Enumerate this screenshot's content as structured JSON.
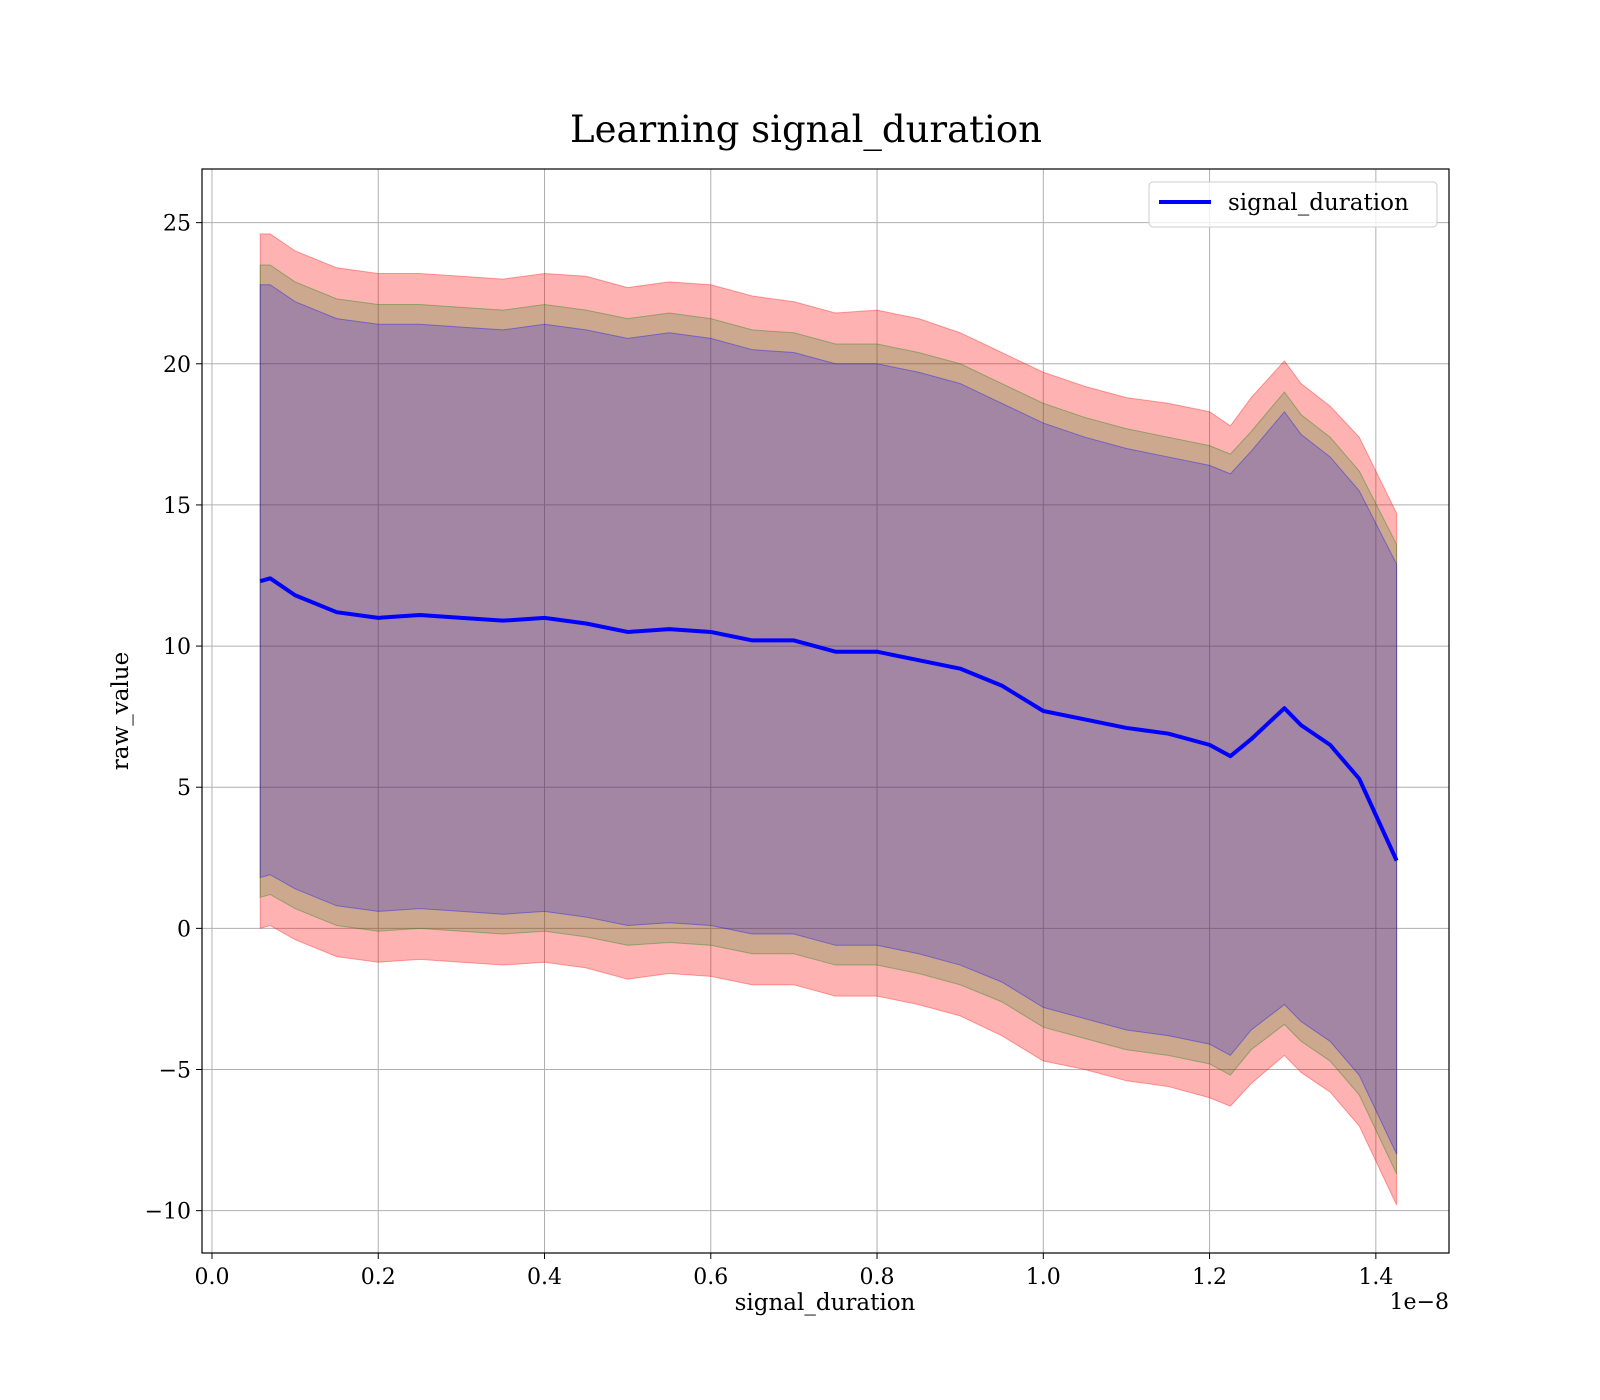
{
  "chart_data": {
    "type": "line",
    "title": "Learning signal_duration",
    "xlabel": "signal_duration",
    "ylabel": "raw_value",
    "x_offset_label": "1e−8",
    "x_scale_exponent": -8,
    "xlim": [
      -1.2e-10,
      1.488e-08
    ],
    "ylim": [
      -11.5,
      26.9
    ],
    "grid": true,
    "legend_position": "upper right",
    "x_ticks": [
      0.0,
      2e-09,
      4e-09,
      6e-09,
      8e-09,
      1e-08,
      1.2e-08,
      1.4e-08
    ],
    "x_tick_labels": [
      "0.0",
      "0.2",
      "0.4",
      "0.6",
      "0.8",
      "1.0",
      "1.2",
      "1.4"
    ],
    "y_ticks": [
      -10,
      -5,
      0,
      5,
      10,
      15,
      20,
      25
    ],
    "y_tick_labels": [
      "−10",
      "−5",
      "0",
      "5",
      "10",
      "15",
      "20",
      "25"
    ],
    "x": [
      5.8e-10,
      7e-10,
      1e-09,
      1.5e-09,
      2e-09,
      2.5e-09,
      3e-09,
      3.5e-09,
      4e-09,
      4.5e-09,
      5e-09,
      5.5e-09,
      6e-09,
      6.5e-09,
      7e-09,
      7.5e-09,
      8e-09,
      8.5e-09,
      9e-09,
      9.5e-09,
      1e-08,
      1.05e-08,
      1.1e-08,
      1.15e-08,
      1.2e-08,
      1.225e-08,
      1.25e-08,
      1.29e-08,
      1.31e-08,
      1.345e-08,
      1.38e-08,
      1.425e-08
    ],
    "series": [
      {
        "name": "signal_duration",
        "color": "#0000ff",
        "values": [
          12.3,
          12.4,
          11.8,
          11.2,
          11.0,
          11.1,
          11.0,
          10.9,
          11.0,
          10.8,
          10.5,
          10.6,
          10.5,
          10.2,
          10.2,
          9.8,
          9.8,
          9.5,
          9.2,
          8.6,
          7.7,
          7.4,
          7.1,
          6.9,
          6.5,
          6.1,
          6.7,
          7.8,
          7.2,
          6.5,
          5.3,
          2.4
        ]
      }
    ],
    "bands": [
      {
        "color": "#ff0000",
        "opacity": 0.3,
        "upper": [
          24.6,
          24.6,
          24.0,
          23.4,
          23.2,
          23.2,
          23.1,
          23.0,
          23.2,
          23.1,
          22.7,
          22.9,
          22.8,
          22.4,
          22.2,
          21.8,
          21.9,
          21.6,
          21.1,
          20.4,
          19.7,
          19.2,
          18.8,
          18.6,
          18.3,
          17.8,
          18.8,
          20.1,
          19.3,
          18.5,
          17.4,
          14.7
        ],
        "lower": [
          0.0,
          0.1,
          -0.4,
          -1.0,
          -1.2,
          -1.1,
          -1.2,
          -1.3,
          -1.2,
          -1.4,
          -1.8,
          -1.6,
          -1.7,
          -2.0,
          -2.0,
          -2.4,
          -2.4,
          -2.7,
          -3.1,
          -3.8,
          -4.7,
          -5.0,
          -5.4,
          -5.6,
          -6.0,
          -6.3,
          -5.5,
          -4.5,
          -5.1,
          -5.8,
          -7.0,
          -9.8
        ]
      },
      {
        "color": "#008000",
        "opacity": 0.2,
        "upper": [
          23.5,
          23.5,
          22.9,
          22.3,
          22.1,
          22.1,
          22.0,
          21.9,
          22.1,
          21.9,
          21.6,
          21.8,
          21.6,
          21.2,
          21.1,
          20.7,
          20.7,
          20.4,
          20.0,
          19.3,
          18.6,
          18.1,
          17.7,
          17.4,
          17.1,
          16.8,
          17.6,
          19.0,
          18.2,
          17.4,
          16.2,
          13.6
        ],
        "lower": [
          1.1,
          1.2,
          0.7,
          0.1,
          -0.1,
          0.0,
          -0.1,
          -0.2,
          -0.1,
          -0.3,
          -0.6,
          -0.5,
          -0.6,
          -0.9,
          -0.9,
          -1.3,
          -1.3,
          -1.6,
          -2.0,
          -2.6,
          -3.5,
          -3.9,
          -4.3,
          -4.5,
          -4.8,
          -5.2,
          -4.3,
          -3.4,
          -4.0,
          -4.7,
          -5.9,
          -8.7
        ]
      },
      {
        "color": "#0000ff",
        "opacity": 0.2,
        "upper": [
          22.8,
          22.8,
          22.2,
          21.6,
          21.4,
          21.4,
          21.3,
          21.2,
          21.4,
          21.2,
          20.9,
          21.1,
          20.9,
          20.5,
          20.4,
          20.0,
          20.0,
          19.7,
          19.3,
          18.6,
          17.9,
          17.4,
          17.0,
          16.7,
          16.4,
          16.1,
          16.9,
          18.3,
          17.5,
          16.7,
          15.5,
          12.9
        ],
        "lower": [
          1.8,
          1.9,
          1.4,
          0.8,
          0.6,
          0.7,
          0.6,
          0.5,
          0.6,
          0.4,
          0.1,
          0.2,
          0.1,
          -0.2,
          -0.2,
          -0.6,
          -0.6,
          -0.9,
          -1.3,
          -1.9,
          -2.8,
          -3.2,
          -3.6,
          -3.8,
          -4.1,
          -4.5,
          -3.6,
          -2.7,
          -3.3,
          -4.0,
          -5.2,
          -8.0
        ]
      }
    ]
  }
}
